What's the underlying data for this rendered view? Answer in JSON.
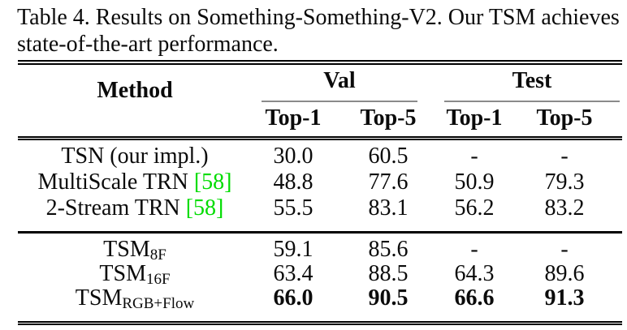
{
  "caption": {
    "line1": "Table 4. Results on Something-Something-V2. Our TSM achieves",
    "line2": "state-of-the-art performance."
  },
  "table": {
    "header": {
      "method": "Method",
      "val_group": "Val",
      "test_group": "Test",
      "val_top1": "Top-1",
      "val_top5": "Top-5",
      "test_top1": "Top-1",
      "test_top5": "Top-5"
    },
    "rows": [
      {
        "method": "TSN (our impl.)",
        "val_top1": "30.0",
        "val_top5": "60.5",
        "test_top1": "-",
        "test_top5": "-"
      },
      {
        "method": "MultiScale TRN ",
        "cite": "[58]",
        "val_top1": "48.8",
        "val_top5": "77.6",
        "test_top1": "50.9",
        "test_top5": "79.3"
      },
      {
        "method": "2-Stream TRN ",
        "cite": "[58]",
        "val_top1": "55.5",
        "val_top5": "83.1",
        "test_top1": "56.2",
        "test_top5": "83.2"
      },
      {
        "method": "TSM",
        "method_sub": "8F",
        "val_top1": "59.1",
        "val_top5": "85.6",
        "test_top1": "-",
        "test_top5": "-"
      },
      {
        "method": "TSM",
        "method_sub": "16F",
        "val_top1": "63.4",
        "val_top5": "88.5",
        "test_top1": "64.3",
        "test_top5": "89.6"
      },
      {
        "method": "TSM",
        "method_sub": "RGB+Flow",
        "val_top1": "66.0",
        "val_top5": "90.5",
        "test_top1": "66.6",
        "test_top5": "91.3"
      }
    ]
  },
  "colors": {
    "citation_green": "#00dc00",
    "rule_black": "#000000",
    "subcolumn_rule_gray": "#8a8a8a",
    "text": "#0b0b0b",
    "background": "#ffffff"
  }
}
